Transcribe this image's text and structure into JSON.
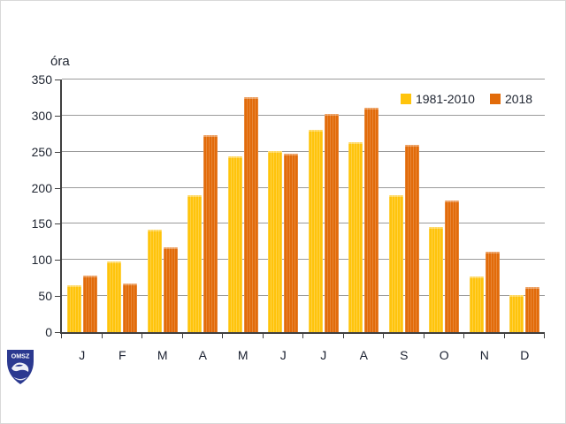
{
  "chart_data": {
    "type": "bar",
    "title": "",
    "xlabel": "",
    "ylabel": "óra",
    "ylim": [
      0,
      350
    ],
    "yticks": [
      0,
      50,
      100,
      150,
      200,
      250,
      300,
      350
    ],
    "grid": "horizontal",
    "legend_position": "top-right",
    "categories": [
      "J",
      "F",
      "M",
      "A",
      "M",
      "J",
      "J",
      "A",
      "S",
      "O",
      "N",
      "D"
    ],
    "series": [
      {
        "name": "1981-2010",
        "color": "#ffc40c",
        "values": [
          65,
          98,
          142,
          190,
          244,
          251,
          280,
          263,
          190,
          146,
          77,
          52
        ]
      },
      {
        "name": "2018",
        "color": "#e26b0a",
        "values": [
          78,
          67,
          117,
          273,
          325,
          247,
          302,
          311,
          260,
          182,
          111,
          63
        ]
      }
    ]
  },
  "branding": {
    "logo_text": "OMSZ",
    "logo_color": "#2b3990"
  },
  "colors": {
    "grid": "#9a9a9a",
    "axis": "#3f3f3f",
    "text": "#1e2430",
    "background": "#ffffff"
  }
}
